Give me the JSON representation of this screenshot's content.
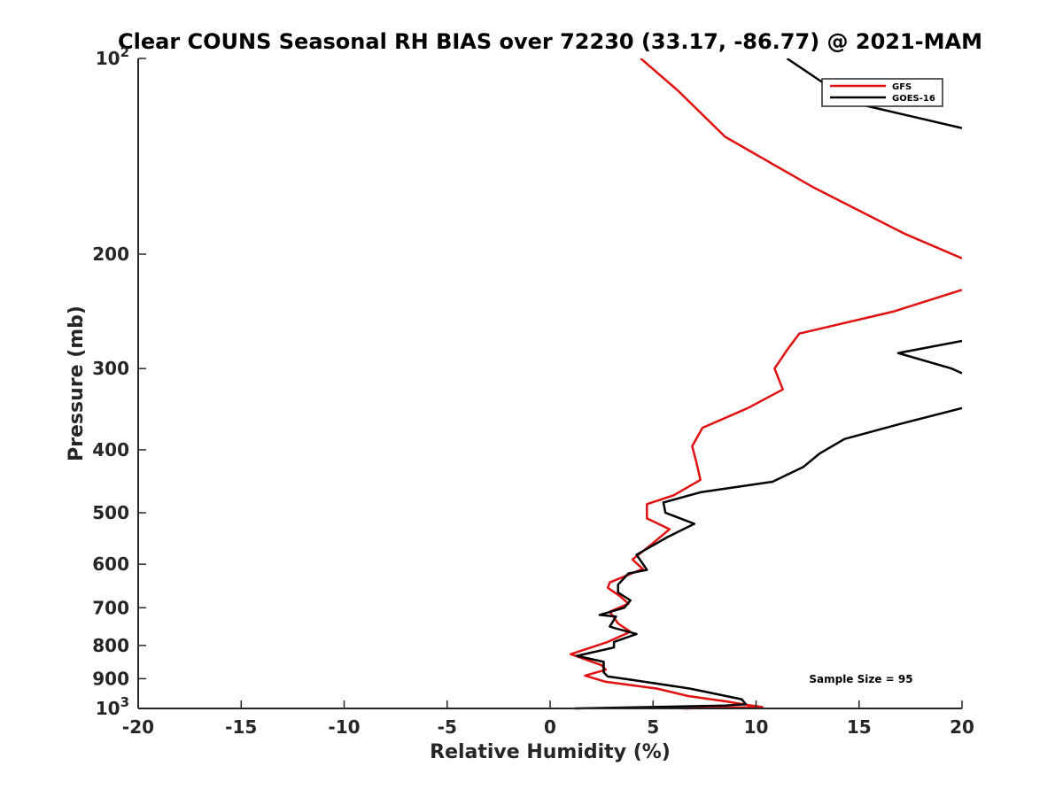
{
  "chart_data": {
    "type": "line",
    "title": "Clear COUNS Seasonal RH BIAS over 72230 (33.17, -86.77) @ 2021-MAM",
    "xlabel": "Relative Humidity (%)",
    "ylabel": "Pressure (mb)",
    "xlim": [
      -20,
      20
    ],
    "ylim": [
      1000,
      100
    ],
    "yscale": "log-reversed",
    "x_ticks": [
      "-20",
      "-15",
      "-10",
      "-5",
      "0",
      "5",
      "10",
      "15",
      "20"
    ],
    "x_tick_values": [
      -20,
      -15,
      -10,
      -5,
      0,
      5,
      10,
      15,
      20
    ],
    "y_ticks": [
      {
        "value": 100,
        "base": "10",
        "exp": "2"
      },
      {
        "value": 200,
        "label": "200"
      },
      {
        "value": 300,
        "label": "300"
      },
      {
        "value": 400,
        "label": "400"
      },
      {
        "value": 500,
        "label": "500"
      },
      {
        "value": 600,
        "label": "600"
      },
      {
        "value": 700,
        "label": "700"
      },
      {
        "value": 800,
        "label": "800"
      },
      {
        "value": 900,
        "label": "900"
      },
      {
        "value": 1000,
        "base": "10",
        "exp": "3"
      }
    ],
    "legend_position": "top-right",
    "series": [
      {
        "name": "GFS",
        "color": "#e01010",
        "points": [
          [
            4.4,
            100
          ],
          [
            6.2,
            112
          ],
          [
            8.5,
            132
          ],
          [
            12.8,
            158
          ],
          [
            17.2,
            186
          ],
          [
            20.0,
            203
          ],
          [
            null,
            null
          ],
          [
            20.0,
            227
          ],
          [
            16.7,
            245
          ],
          [
            12.1,
            265
          ],
          [
            11.5,
            281
          ],
          [
            10.9,
            300
          ],
          [
            11.3,
            323
          ],
          [
            9.6,
            345
          ],
          [
            7.4,
            370
          ],
          [
            6.9,
            395
          ],
          [
            7.1,
            418
          ],
          [
            7.3,
            445
          ],
          [
            6.0,
            470
          ],
          [
            4.7,
            485
          ],
          [
            4.7,
            510
          ],
          [
            5.8,
            530
          ],
          [
            4.9,
            560
          ],
          [
            4.0,
            590
          ],
          [
            4.5,
            610
          ],
          [
            2.9,
            640
          ],
          [
            2.8,
            652
          ],
          [
            3.4,
            672
          ],
          [
            3.8,
            690
          ],
          [
            2.9,
            710
          ],
          [
            3.3,
            740
          ],
          [
            3.9,
            762
          ],
          [
            2.8,
            790
          ],
          [
            1.0,
            825
          ],
          [
            2.5,
            858
          ],
          [
            2.7,
            872
          ],
          [
            1.7,
            890
          ],
          [
            2.7,
            910
          ],
          [
            5.2,
            932
          ],
          [
            6.7,
            957
          ],
          [
            8.5,
            975
          ],
          [
            9.8,
            990
          ],
          [
            10.3,
            995
          ],
          [
            6.5,
            1000
          ]
        ]
      },
      {
        "name": "GOES-16",
        "color": "#000000",
        "points": [
          [
            11.5,
            100
          ],
          [
            14.7,
            117
          ],
          [
            20.0,
            128
          ],
          [
            null,
            null
          ],
          [
            20.0,
            272
          ],
          [
            16.9,
            284
          ],
          [
            19.5,
            300
          ],
          [
            20.0,
            305
          ],
          [
            null,
            null
          ],
          [
            20.0,
            345
          ],
          [
            17.0,
            365
          ],
          [
            14.3,
            385
          ],
          [
            13.1,
            405
          ],
          [
            12.3,
            425
          ],
          [
            10.8,
            448
          ],
          [
            7.3,
            465
          ],
          [
            5.5,
            482
          ],
          [
            5.6,
            500
          ],
          [
            7.0,
            520
          ],
          [
            5.7,
            545
          ],
          [
            4.2,
            580
          ],
          [
            4.7,
            612
          ],
          [
            3.8,
            620
          ],
          [
            3.3,
            645
          ],
          [
            3.3,
            663
          ],
          [
            3.9,
            682
          ],
          [
            3.6,
            700
          ],
          [
            2.4,
            718
          ],
          [
            3.2,
            722
          ],
          [
            2.9,
            748
          ],
          [
            3.1,
            752
          ],
          [
            4.2,
            768
          ],
          [
            3.1,
            790
          ],
          [
            3.1,
            806
          ],
          [
            1.3,
            830
          ],
          [
            2.6,
            848
          ],
          [
            2.6,
            880
          ],
          [
            2.8,
            893
          ],
          [
            3.9,
            903
          ],
          [
            6.8,
            932
          ],
          [
            9.3,
            968
          ],
          [
            9.5,
            985
          ],
          [
            8.5,
            990
          ],
          [
            1.2,
            1000
          ]
        ]
      }
    ],
    "annotations": [
      "Sample Size = 95"
    ]
  }
}
